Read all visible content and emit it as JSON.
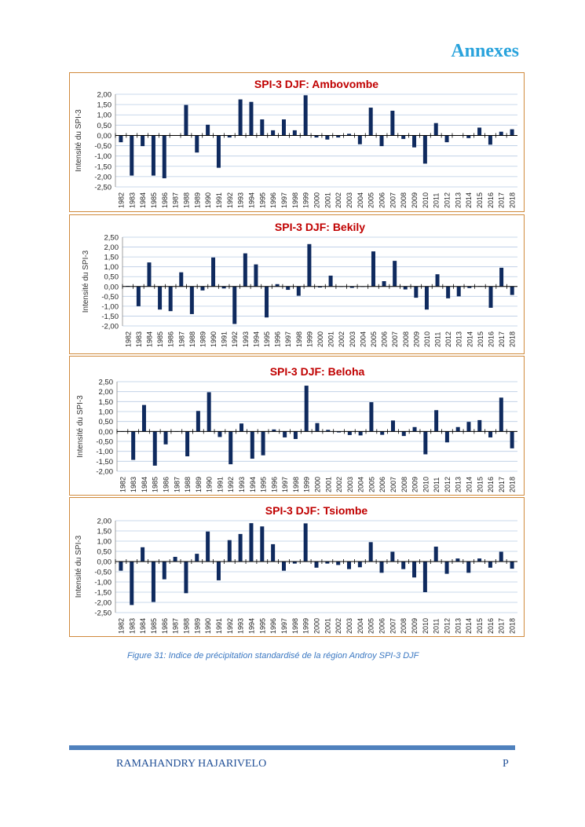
{
  "header": {
    "title": "Annexes"
  },
  "caption": "Figure 31: Indice de précipitation standardisé de la région Androy SPI-3 DJF",
  "footer": {
    "author": "RAMAHANDRY HAJARIVELO",
    "page": "P"
  },
  "colors": {
    "bar": "#0f2a5e",
    "title": "#c00000",
    "grid": "#b8cce4",
    "border": "#d08a3c"
  },
  "chart_data": [
    {
      "type": "bar",
      "title": "SPI-3 DJF: Ambovombe",
      "ylabel": "Intensité du SPI-3",
      "xlabel": "",
      "ylim": [
        -2.5,
        2.0
      ],
      "yticks": [
        2.0,
        1.5,
        1.0,
        0.5,
        0.0,
        -0.5,
        -1.0,
        -1.5,
        -2.0,
        -2.5
      ],
      "ytick_labels": [
        "2,00",
        "1,50",
        "1,00",
        "0,50",
        "0,00",
        "-0,50",
        "-1,00",
        "-1,50",
        "-2,00",
        "-2,50"
      ],
      "grid": true,
      "categories": [
        "1982",
        "1983",
        "1984",
        "1985",
        "1986",
        "1987",
        "1988",
        "1989",
        "1990",
        "1991",
        "1992",
        "1993",
        "1994",
        "1995",
        "1996",
        "1997",
        "1998",
        "1999",
        "2000",
        "2001",
        "2002",
        "2003",
        "2004",
        "2005",
        "2006",
        "2007",
        "2008",
        "2009",
        "2010",
        "2011",
        "2012",
        "2013",
        "2014",
        "2015",
        "2016",
        "2017",
        "2018"
      ],
      "values": [
        -0.33,
        -1.95,
        -0.52,
        -1.95,
        -2.08,
        0,
        1.48,
        -0.83,
        0.52,
        -1.57,
        -0.1,
        1.75,
        1.63,
        0.78,
        0.25,
        0.78,
        0.25,
        1.95,
        -0.1,
        -0.2,
        -0.1,
        0.08,
        -0.43,
        1.35,
        -0.52,
        1.2,
        -0.17,
        -0.58,
        -1.37,
        0.6,
        -0.33,
        0,
        -0.13,
        0.38,
        -0.45,
        0.18,
        0.3
      ]
    },
    {
      "type": "bar",
      "title": "SPI-3 DJF: Bekily",
      "ylabel": "Intensité du SPI-3",
      "xlabel": "",
      "ylim": [
        -2.0,
        2.5
      ],
      "yticks": [
        2.5,
        2.0,
        1.5,
        1.0,
        0.5,
        0.0,
        -0.5,
        -1.0,
        -1.5,
        -2.0
      ],
      "ytick_labels": [
        "2,50",
        "2,00",
        "1,50",
        "1,00",
        "0,50",
        "0,00",
        "-0,50",
        "-1,00",
        "-1,50",
        "-2,00"
      ],
      "grid": true,
      "categories": [
        "1982",
        "1983",
        "1984",
        "1985",
        "1986",
        "1987",
        "1988",
        "1989",
        "1990",
        "1991",
        "1992",
        "1993",
        "1994",
        "1995",
        "1996",
        "1997",
        "1998",
        "1999",
        "2000",
        "2001",
        "2002",
        "2003",
        "2004",
        "2005",
        "2006",
        "2007",
        "2008",
        "2009",
        "2010",
        "2011",
        "2012",
        "2013",
        "2014",
        "2015",
        "2016",
        "2017",
        "2018"
      ],
      "values": [
        0.03,
        -1.0,
        1.22,
        -1.17,
        -1.25,
        0.72,
        -1.4,
        -0.2,
        1.47,
        -0.1,
        -1.9,
        1.68,
        1.12,
        -1.57,
        0.12,
        -0.17,
        -0.47,
        2.15,
        -0.05,
        0.55,
        0,
        -0.07,
        0,
        1.78,
        0.27,
        1.3,
        -0.15,
        -0.57,
        -1.17,
        0.62,
        -0.6,
        -0.5,
        -0.08,
        0.02,
        -1.08,
        0.95,
        -0.43
      ]
    },
    {
      "type": "bar",
      "title": "SPI-3 DJF: Beloha",
      "ylabel": "Intensité du SPI-3",
      "xlabel": "",
      "ylim": [
        -2.0,
        2.5
      ],
      "yticks": [
        2.5,
        2.0,
        1.5,
        1.0,
        0.5,
        0.0,
        -0.5,
        -1.0,
        -1.5,
        -2.0
      ],
      "ytick_labels": [
        "2,50",
        "2,00",
        "1,50",
        "1,00",
        "0,50",
        "0,00",
        "-0,50",
        "-1,00",
        "-1,50",
        "-2,00"
      ],
      "grid": true,
      "categories": [
        "1982",
        "1983",
        "1984",
        "1985",
        "1986",
        "1987",
        "1988",
        "1989",
        "1990",
        "1991",
        "1992",
        "1993",
        "1994",
        "1995",
        "1996",
        "1997",
        "1998",
        "1999",
        "2000",
        "2001",
        "2002",
        "2003",
        "2004",
        "2005",
        "2006",
        "2007",
        "2008",
        "2009",
        "2010",
        "2011",
        "2012",
        "2013",
        "2014",
        "2015",
        "2016",
        "2017",
        "2018"
      ],
      "values": [
        0,
        -1.43,
        1.33,
        -1.72,
        -0.65,
        0,
        -1.25,
        1.03,
        1.97,
        -0.28,
        -1.65,
        0.4,
        -1.37,
        -1.2,
        0.1,
        -0.3,
        -0.38,
        2.3,
        0.42,
        0.08,
        -0.05,
        -0.18,
        -0.2,
        1.47,
        -0.17,
        0.55,
        -0.23,
        0.22,
        -1.15,
        1.07,
        -0.55,
        0.22,
        0.48,
        0.57,
        -0.3,
        1.7,
        -0.85
      ]
    },
    {
      "type": "bar",
      "title": "SPI-3 DJF: Tsiombe",
      "ylabel": "Intensité du SPI-3",
      "xlabel": "",
      "ylim": [
        -2.5,
        2.0
      ],
      "yticks": [
        2.0,
        1.5,
        1.0,
        0.5,
        0.0,
        -0.5,
        -1.0,
        -1.5,
        -2.0,
        -2.5
      ],
      "ytick_labels": [
        "2,00",
        "1,50",
        "1,00",
        "0,50",
        "0,00",
        "-0,50",
        "-1,00",
        "-1,50",
        "-2,00",
        "-2,50"
      ],
      "grid": true,
      "categories": [
        "1982",
        "1983",
        "1984",
        "1985",
        "1986",
        "1987",
        "1988",
        "1989",
        "1990",
        "1991",
        "1992",
        "1993",
        "1994",
        "1995",
        "1996",
        "1997",
        "1998",
        "1999",
        "2000",
        "2001",
        "2002",
        "2003",
        "2004",
        "2005",
        "2006",
        "2007",
        "2008",
        "2009",
        "2010",
        "2011",
        "2012",
        "2013",
        "2014",
        "2015",
        "2016",
        "2017",
        "2018"
      ],
      "values": [
        -0.45,
        -2.13,
        0.7,
        -1.98,
        -0.87,
        0.23,
        -1.55,
        0.38,
        1.47,
        -0.92,
        1.05,
        1.35,
        1.88,
        1.72,
        0.85,
        -0.45,
        -0.1,
        1.87,
        -0.3,
        -0.1,
        -0.17,
        -0.37,
        -0.28,
        0.95,
        -0.55,
        0.48,
        -0.37,
        -0.78,
        -1.5,
        0.73,
        -0.6,
        0.15,
        -0.55,
        0.15,
        -0.3,
        0.48,
        -0.35
      ]
    }
  ]
}
